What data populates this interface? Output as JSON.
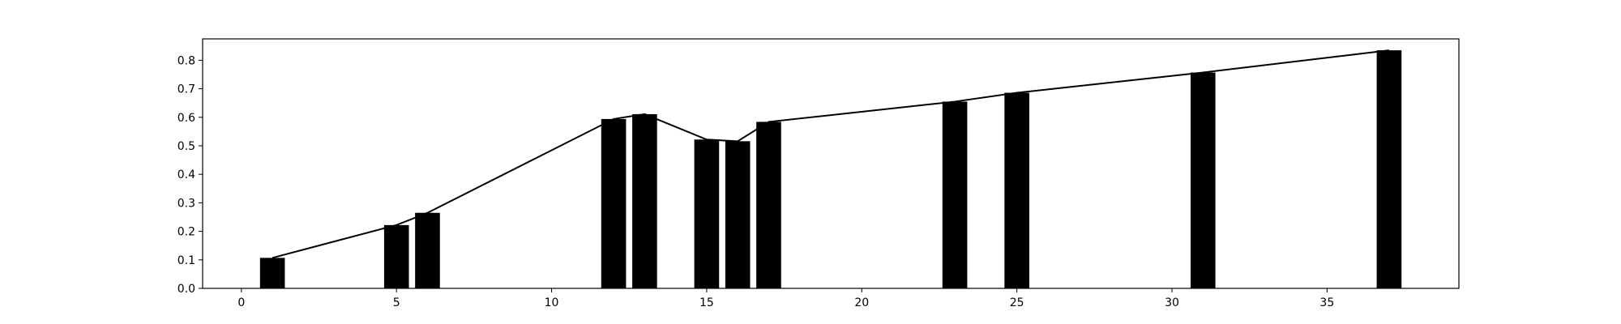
{
  "chart_data": {
    "type": "bar",
    "title": "",
    "xlabel": "",
    "ylabel": "",
    "xlim": [
      -1.25,
      39.25
    ],
    "ylim": [
      0,
      0.875
    ],
    "grid": false,
    "bar_color": "#000000",
    "line_color": "#000000",
    "x_ticks": [
      0,
      5,
      10,
      15,
      20,
      25,
      30,
      35
    ],
    "y_ticks": [
      0.0,
      0.1,
      0.2,
      0.3,
      0.4,
      0.5,
      0.6,
      0.7,
      0.8
    ],
    "x_tick_labels": [
      "0",
      "5",
      "10",
      "15",
      "20",
      "25",
      "30",
      "35"
    ],
    "y_tick_labels": [
      "0.0",
      "0.1",
      "0.2",
      "0.3",
      "0.4",
      "0.5",
      "0.6",
      "0.7",
      "0.8"
    ],
    "bar_width": 0.8,
    "x": [
      1,
      5,
      6,
      12,
      13,
      15,
      16,
      17,
      23,
      25,
      31,
      37
    ],
    "values": [
      0.107,
      0.222,
      0.265,
      0.594,
      0.611,
      0.522,
      0.516,
      0.584,
      0.655,
      0.686,
      0.757,
      0.835
    ],
    "series": [
      {
        "type": "bar",
        "values": [
          0.107,
          0.222,
          0.265,
          0.594,
          0.611,
          0.522,
          0.516,
          0.584,
          0.655,
          0.686,
          0.757,
          0.835
        ]
      },
      {
        "type": "line",
        "values": [
          0.107,
          0.222,
          0.265,
          0.594,
          0.611,
          0.522,
          0.516,
          0.584,
          0.655,
          0.686,
          0.757,
          0.835
        ]
      }
    ]
  }
}
